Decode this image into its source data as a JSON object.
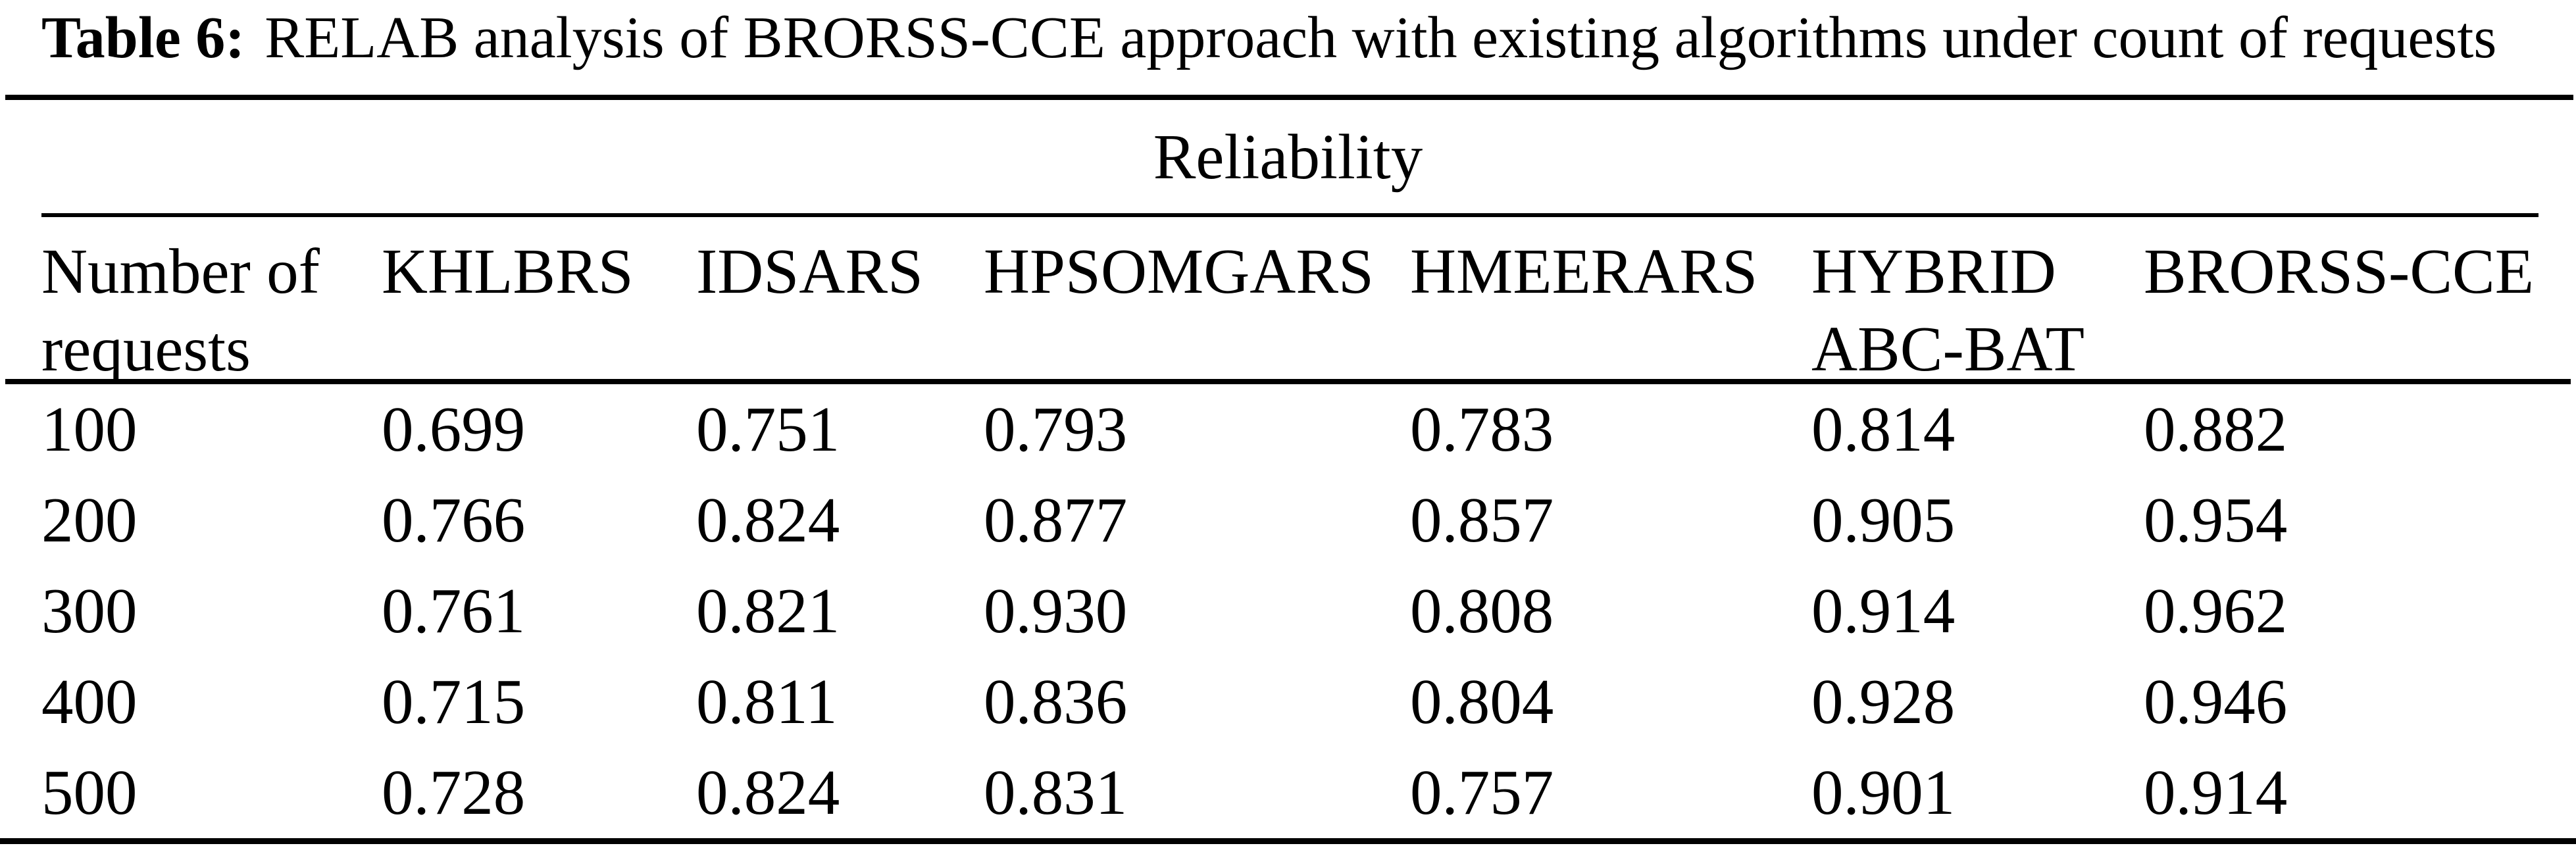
{
  "caption": {
    "label": "Table 6:",
    "text": "RELAB analysis of BRORSS-CCE approach with existing algorithms under count of requests"
  },
  "table": {
    "group_header": "Reliability",
    "columns": [
      "Number of requests",
      "KHLBRS",
      "IDSARS",
      "HPSOMGARS",
      "HMEERARS",
      "HYBRID ABC-BAT",
      "BRORSS-CCE"
    ],
    "rows": [
      [
        "100",
        "0.699",
        "0.751",
        "0.793",
        "0.783",
        "0.814",
        "0.882"
      ],
      [
        "200",
        "0.766",
        "0.824",
        "0.877",
        "0.857",
        "0.905",
        "0.954"
      ],
      [
        "300",
        "0.761",
        "0.821",
        "0.930",
        "0.808",
        "0.914",
        "0.962"
      ],
      [
        "400",
        "0.715",
        "0.811",
        "0.836",
        "0.804",
        "0.928",
        "0.946"
      ],
      [
        "500",
        "0.728",
        "0.824",
        "0.831",
        "0.757",
        "0.901",
        "0.914"
      ]
    ]
  },
  "colors": {
    "ink": "#000000",
    "paper": "#ffffff"
  }
}
